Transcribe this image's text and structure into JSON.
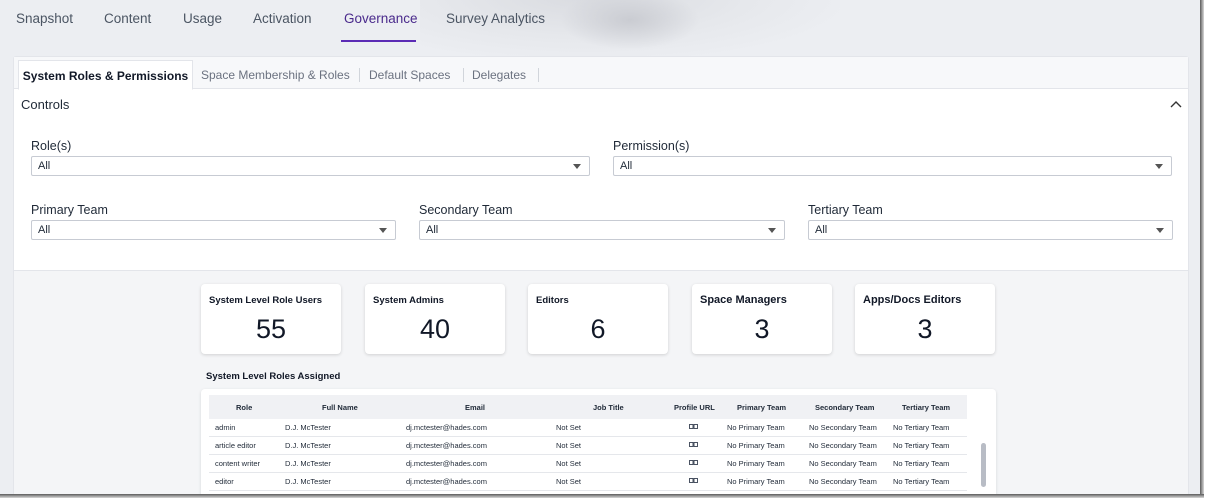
{
  "nav": {
    "tabs": [
      {
        "label": "Snapshot"
      },
      {
        "label": "Content"
      },
      {
        "label": "Usage"
      },
      {
        "label": "Activation"
      },
      {
        "label": "Governance"
      },
      {
        "label": "Survey Analytics"
      }
    ],
    "active_tab": "Governance"
  },
  "subtabs": [
    {
      "label": "System Roles & Permissions"
    },
    {
      "label": "Space Membership & Roles"
    },
    {
      "label": "Default Spaces"
    },
    {
      "label": "Delegates"
    }
  ],
  "controls": {
    "title": "Controls",
    "filters": {
      "roles": {
        "label": "Role(s)",
        "value": "All"
      },
      "permissions": {
        "label": "Permission(s)",
        "value": "All"
      },
      "primary_team": {
        "label": "Primary Team",
        "value": "All"
      },
      "secondary_team": {
        "label": "Secondary Team",
        "value": "All"
      },
      "tertiary_team": {
        "label": "Tertiary Team",
        "value": "All"
      }
    }
  },
  "kpis": [
    {
      "title": "System Level Role Users",
      "value": "55"
    },
    {
      "title": "System Admins",
      "value": "40"
    },
    {
      "title": "Editors",
      "value": "6"
    },
    {
      "title": "Space Managers",
      "value": "3"
    },
    {
      "title": "Apps/Docs Editors",
      "value": "3"
    }
  ],
  "table": {
    "title": "System Level Roles Assigned",
    "columns": [
      "Role",
      "Full Name",
      "Email",
      "Job Title",
      "Profile URL",
      "Primary Team",
      "Secondary Team",
      "Tertiary Team"
    ],
    "rows": [
      {
        "role": "admin",
        "full_name": "D.J. McTester",
        "email": "dj.mctester@hades.com",
        "job_title": "Not Set",
        "primary": "No Primary Team",
        "secondary": "No Secondary Team",
        "tertiary": "No Tertiary Team"
      },
      {
        "role": "article editor",
        "full_name": "D.J. McTester",
        "email": "dj.mctester@hades.com",
        "job_title": "Not Set",
        "primary": "No Primary Team",
        "secondary": "No Secondary Team",
        "tertiary": "No Tertiary Team"
      },
      {
        "role": "content writer",
        "full_name": "D.J. McTester",
        "email": "dj.mctester@hades.com",
        "job_title": "Not Set",
        "primary": "No Primary Team",
        "secondary": "No Secondary Team",
        "tertiary": "No Tertiary Team"
      },
      {
        "role": "editor",
        "full_name": "D.J. McTester",
        "email": "dj.mctester@hades.com",
        "job_title": "Not Set",
        "primary": "No Primary Team",
        "secondary": "No Secondary Team",
        "tertiary": "No Tertiary Team"
      }
    ]
  },
  "colors": {
    "accent": "#5b2bb5",
    "active_tab_text": "#4a2a8c"
  }
}
